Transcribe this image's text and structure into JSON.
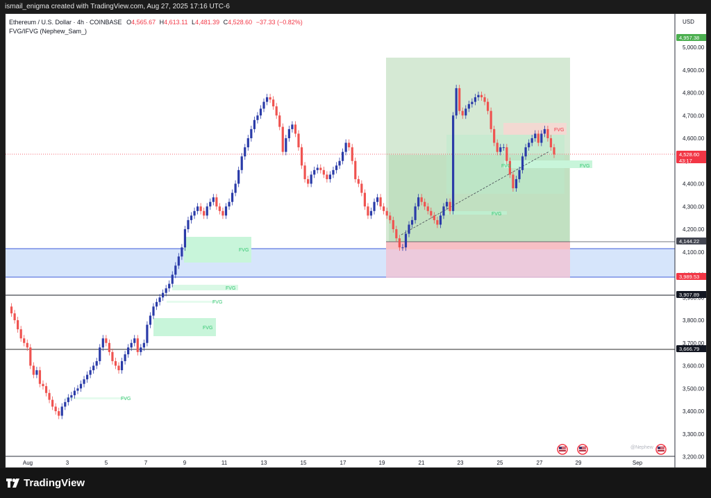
{
  "header": {
    "caption": "ismail_enigma created with TradingView.com, Aug 27, 2025 17:16 UTC-6"
  },
  "legend": {
    "symbol": "Ethereum / U.S. Dollar · 4h · COINBASE",
    "open_label": "O",
    "open": "4,565.67",
    "high_label": "H",
    "high": "4,613.11",
    "low_label": "L",
    "low": "4,481.39",
    "close_label": "C",
    "close": "4,528.60",
    "change": "−37.33 (−0.82%)",
    "indicator": "FVG/IFVG (Nephew_Sam_)"
  },
  "axis": {
    "currency": "USD",
    "price_ticks": [
      "5,000.00",
      "4,900.00",
      "4,800.00",
      "4,700.00",
      "4,600.00",
      "4,500.00",
      "4,400.00",
      "4,300.00",
      "4,200.00",
      "4,100.00",
      "4,000.00",
      "3,900.00",
      "3,800.00",
      "3,700.00",
      "3,600.00",
      "3,500.00",
      "3,400.00",
      "3,300.00",
      "3,200.00"
    ],
    "time_ticks": [
      "Aug",
      "3",
      "5",
      "7",
      "9",
      "11",
      "13",
      "15",
      "17",
      "19",
      "21",
      "23",
      "25",
      "27",
      "29",
      "Sep"
    ]
  },
  "price_tags": [
    {
      "name": "target-price-tag",
      "text": "4,957.38",
      "color": "#4caf50"
    },
    {
      "name": "current-price-tag",
      "text": "4,528.60",
      "sub": "43:17",
      "color": "#f23645"
    },
    {
      "name": "stop-price-tag",
      "text": "4,144.22",
      "color": "#434651"
    },
    {
      "name": "zone-bottom-tag",
      "text": "3,989.53",
      "color": "#f23645"
    },
    {
      "name": "level-tag-3907",
      "text": "3,907.89",
      "color": "#131722"
    },
    {
      "name": "level-tag-3666",
      "text": "3,666.79",
      "color": "#131722"
    }
  ],
  "fvg_label": "FVG",
  "watermark": "@Nephew",
  "brand": "TradingView",
  "colors": {
    "up": "#2a3ba8",
    "down": "#ef5350",
    "fvg_green": "#c8f5da",
    "fvg_red": "#f3d9d2",
    "zone_blue": "#d6e5fb",
    "long_profit": "#d8ead8",
    "long_loss": "#f1d3e3"
  }
}
